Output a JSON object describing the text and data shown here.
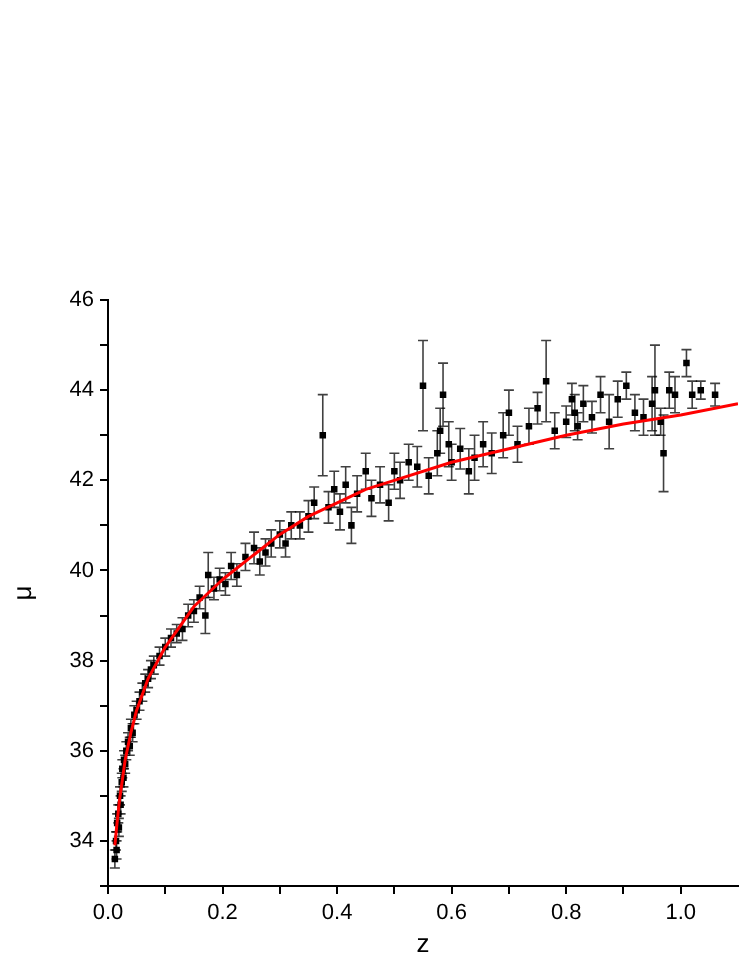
{
  "chart_data": {
    "type": "scatter",
    "xlabel": "z",
    "ylabel": "μ",
    "xlim": [
      0,
      1.1
    ],
    "xticks": [
      {
        "value": 0,
        "label": "0.0"
      },
      {
        "value": 0.1,
        "label": null
      },
      {
        "value": 0.2,
        "label": "0.2"
      },
      {
        "value": 0.3,
        "label": null
      },
      {
        "value": 0.4,
        "label": "0.4"
      },
      {
        "value": 0.5,
        "label": null
      },
      {
        "value": 0.6,
        "label": "0.6"
      },
      {
        "value": 0.7,
        "label": null
      },
      {
        "value": 0.8,
        "label": "0.8"
      },
      {
        "value": 0.9,
        "label": null
      },
      {
        "value": 1.0,
        "label": "1.0"
      }
    ],
    "ylim": [
      33,
      46
    ],
    "yticks": [
      {
        "value": 33,
        "label": null
      },
      34,
      {
        "value": 35,
        "label": null
      },
      36,
      {
        "value": 37,
        "label": null
      },
      38,
      {
        "value": 39,
        "label": null
      },
      40,
      {
        "value": 41,
        "label": null
      },
      42,
      {
        "value": 43,
        "label": null
      },
      44,
      {
        "value": 45,
        "label": null
      },
      46
    ],
    "grid": false,
    "legend": false,
    "series": [
      {
        "color": "#000000",
        "marker": "square",
        "x": [
          0.012,
          0.014,
          0.015,
          0.016,
          0.018,
          0.019,
          0.021,
          0.022,
          0.024,
          0.025,
          0.027,
          0.028,
          0.03,
          0.032,
          0.035,
          0.038,
          0.04,
          0.043,
          0.046,
          0.05,
          0.055,
          0.06,
          0.065,
          0.07,
          0.075,
          0.08,
          0.09,
          0.1,
          0.11,
          0.12,
          0.13,
          0.14,
          0.15,
          0.16,
          0.17,
          0.175,
          0.185,
          0.195,
          0.205,
          0.215,
          0.225,
          0.24,
          0.255,
          0.265,
          0.275,
          0.285,
          0.3,
          0.31,
          0.32,
          0.335,
          0.35,
          0.36,
          0.375,
          0.385,
          0.395,
          0.405,
          0.415,
          0.425,
          0.435,
          0.45,
          0.46,
          0.475,
          0.49,
          0.5,
          0.51,
          0.525,
          0.54,
          0.55,
          0.56,
          0.575,
          0.58,
          0.585,
          0.595,
          0.6,
          0.615,
          0.63,
          0.64,
          0.655,
          0.67,
          0.69,
          0.7,
          0.715,
          0.735,
          0.75,
          0.765,
          0.78,
          0.8,
          0.81,
          0.815,
          0.82,
          0.83,
          0.845,
          0.86,
          0.875,
          0.89,
          0.905,
          0.92,
          0.935,
          0.95,
          0.955,
          0.965,
          0.97,
          0.98,
          0.99,
          1.01,
          1.02,
          1.035,
          1.06
        ],
        "values": [
          33.6,
          34.0,
          33.8,
          34.4,
          34.6,
          34.3,
          35.0,
          34.8,
          35.3,
          35.6,
          35.4,
          35.8,
          35.7,
          36.0,
          36.2,
          36.1,
          36.5,
          36.4,
          36.8,
          36.9,
          37.1,
          37.3,
          37.5,
          37.6,
          37.8,
          37.9,
          38.1,
          38.3,
          38.5,
          38.6,
          38.7,
          39.0,
          39.1,
          39.4,
          39.0,
          39.9,
          39.6,
          39.8,
          39.7,
          40.1,
          39.9,
          40.3,
          40.5,
          40.2,
          40.4,
          40.6,
          40.8,
          40.6,
          41.0,
          41.0,
          41.2,
          41.5,
          43.0,
          41.4,
          41.8,
          41.3,
          41.9,
          41.0,
          41.7,
          42.2,
          41.6,
          41.9,
          41.5,
          42.2,
          42.0,
          42.4,
          42.3,
          44.1,
          42.1,
          42.6,
          43.1,
          43.9,
          42.8,
          42.4,
          42.7,
          42.2,
          42.5,
          42.8,
          42.6,
          43.0,
          43.5,
          42.8,
          43.2,
          43.6,
          44.2,
          43.1,
          43.3,
          43.8,
          43.5,
          43.2,
          43.7,
          43.4,
          43.9,
          43.3,
          43.8,
          44.1,
          43.5,
          43.4,
          43.7,
          44.0,
          43.3,
          42.6,
          44.0,
          43.9,
          44.6,
          43.9,
          44.0,
          43.9
        ],
        "errors": [
          0.2,
          0.2,
          0.2,
          0.2,
          0.2,
          0.2,
          0.2,
          0.2,
          0.2,
          0.2,
          0.2,
          0.2,
          0.2,
          0.2,
          0.2,
          0.2,
          0.2,
          0.2,
          0.2,
          0.2,
          0.2,
          0.2,
          0.2,
          0.2,
          0.2,
          0.2,
          0.2,
          0.2,
          0.2,
          0.2,
          0.25,
          0.25,
          0.25,
          0.25,
          0.4,
          0.5,
          0.25,
          0.25,
          0.25,
          0.3,
          0.25,
          0.3,
          0.35,
          0.3,
          0.3,
          0.3,
          0.3,
          0.3,
          0.3,
          0.3,
          0.35,
          0.35,
          0.9,
          0.35,
          0.4,
          0.4,
          0.4,
          0.4,
          0.4,
          0.4,
          0.4,
          0.4,
          0.4,
          0.4,
          0.4,
          0.4,
          0.45,
          1.0,
          0.4,
          0.5,
          0.5,
          0.7,
          0.5,
          0.4,
          0.45,
          0.5,
          0.5,
          0.5,
          0.45,
          0.5,
          0.5,
          0.4,
          0.4,
          0.35,
          0.9,
          0.4,
          0.35,
          0.35,
          0.4,
          0.3,
          0.4,
          0.35,
          0.4,
          0.6,
          0.4,
          0.3,
          0.4,
          0.4,
          0.6,
          1.0,
          0.3,
          0.85,
          0.4,
          0.4,
          0.3,
          0.3,
          0.2,
          0.25
        ]
      },
      {
        "type": "line",
        "color": "#ff0000",
        "marker": "none",
        "x": [
          0.012,
          0.015,
          0.02,
          0.03,
          0.04,
          0.05,
          0.07,
          0.1,
          0.15,
          0.2,
          0.25,
          0.3,
          0.35,
          0.4,
          0.45,
          0.5,
          0.6,
          0.7,
          0.8,
          0.9,
          1.0,
          1.1
        ],
        "values": [
          33.9,
          34.3,
          34.9,
          35.8,
          36.4,
          36.9,
          37.6,
          38.3,
          39.2,
          39.8,
          40.3,
          40.8,
          41.2,
          41.5,
          41.8,
          42.0,
          42.4,
          42.7,
          43.0,
          43.25,
          43.45,
          43.7
        ]
      }
    ]
  }
}
